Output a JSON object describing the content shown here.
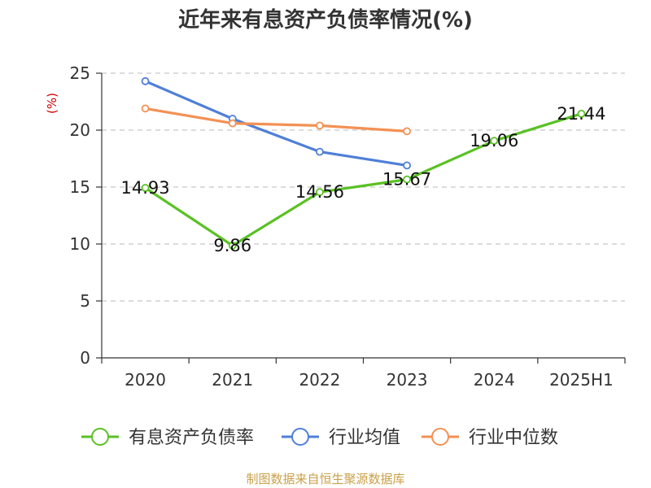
{
  "chart_data": {
    "type": "line",
    "title": "近年来有息资产负债率情况(%)",
    "y_unit": "(%)",
    "categories": [
      "2020",
      "2021",
      "2022",
      "2023",
      "2024",
      "2025H1"
    ],
    "ylim": [
      0,
      25
    ],
    "yticks": [
      "0",
      "5",
      "10",
      "15",
      "20",
      "25"
    ],
    "grid": true,
    "legend_position": "bottom",
    "series": [
      {
        "name": "有息资产负债率",
        "color": "#5ac124",
        "values": [
          14.93,
          9.86,
          14.56,
          15.67,
          19.06,
          21.44
        ],
        "labels": [
          "14.93",
          "9.86",
          "14.56",
          "15.67",
          "19.06",
          "21.44"
        ]
      },
      {
        "name": "行业均值",
        "color": "#4f7fd8",
        "values": [
          24.3,
          21.0,
          18.1,
          16.9,
          null,
          null
        ]
      },
      {
        "name": "行业中位数",
        "color": "#f39154",
        "values": [
          21.9,
          20.6,
          20.4,
          19.9,
          null,
          null
        ]
      }
    ]
  },
  "source": "制图数据来自恒生聚源数据库"
}
